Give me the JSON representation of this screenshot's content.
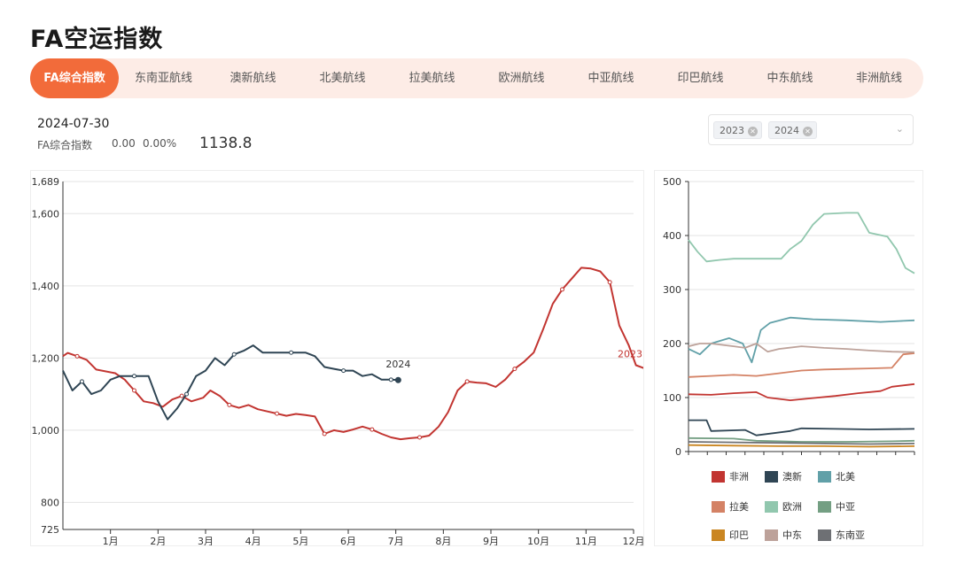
{
  "page": {
    "title": "FA空运指数"
  },
  "tabs": [
    {
      "label": "FA综合指数",
      "active": true
    },
    {
      "label": "东南亚航线"
    },
    {
      "label": "澳新航线"
    },
    {
      "label": "北美航线"
    },
    {
      "label": "拉美航线"
    },
    {
      "label": "欧洲航线"
    },
    {
      "label": "中亚航线"
    },
    {
      "label": "印巴航线"
    },
    {
      "label": "中东航线"
    },
    {
      "label": "非洲航线"
    }
  ],
  "summary": {
    "date": "2024-07-30",
    "name": "FA综合指数",
    "change": "0.00",
    "change_pct": "0.00%",
    "value": "1138.8"
  },
  "year_filter": {
    "tags": [
      "2023",
      "2024"
    ]
  },
  "colors": {
    "accent": "#f26b3a",
    "y2023": "#c23531",
    "y2024": "#2f4554"
  },
  "chart_data": [
    {
      "type": "line",
      "title": "",
      "x_ticks": [
        "1月",
        "2月",
        "3月",
        "4月",
        "5月",
        "6月",
        "7月",
        "8月",
        "9月",
        "10月",
        "11月",
        "12月"
      ],
      "y_ticks": [
        "725",
        "800",
        "1,000",
        "1,200",
        "1,400",
        "1,600",
        "1,689"
      ],
      "ylim": [
        725,
        1689
      ],
      "grid": true,
      "series": [
        {
          "name": "2023",
          "color": "#c23531",
          "points": [
            [
              0,
              1205
            ],
            [
              0.1,
              1214
            ],
            [
              0.3,
              1205
            ],
            [
              0.5,
              1195
            ],
            [
              0.7,
              1168
            ],
            [
              1.1,
              1158
            ],
            [
              1.3,
              1140
            ],
            [
              1.5,
              1110
            ],
            [
              1.7,
              1080
            ],
            [
              1.9,
              1075
            ],
            [
              2.1,
              1065
            ],
            [
              2.3,
              1085
            ],
            [
              2.5,
              1095
            ],
            [
              2.7,
              1080
            ],
            [
              2.95,
              1090
            ],
            [
              3.1,
              1110
            ],
            [
              3.3,
              1095
            ],
            [
              3.5,
              1070
            ],
            [
              3.7,
              1062
            ],
            [
              3.9,
              1070
            ],
            [
              4.1,
              1058
            ],
            [
              4.3,
              1052
            ],
            [
              4.5,
              1046
            ],
            [
              4.7,
              1040
            ],
            [
              4.9,
              1045
            ],
            [
              5.1,
              1042
            ],
            [
              5.3,
              1038
            ],
            [
              5.5,
              990
            ],
            [
              5.7,
              1000
            ],
            [
              5.9,
              995
            ],
            [
              6.1,
              1002
            ],
            [
              6.3,
              1010
            ],
            [
              6.5,
              1002
            ],
            [
              6.7,
              990
            ],
            [
              6.9,
              980
            ],
            [
              7.1,
              975
            ],
            [
              7.3,
              978
            ],
            [
              7.5,
              980
            ],
            [
              7.7,
              985
            ],
            [
              7.9,
              1010
            ],
            [
              8.1,
              1050
            ],
            [
              8.3,
              1110
            ],
            [
              8.5,
              1135
            ],
            [
              8.7,
              1132
            ],
            [
              8.9,
              1130
            ],
            [
              9.1,
              1120
            ],
            [
              9.3,
              1140
            ],
            [
              9.5,
              1170
            ],
            [
              9.7,
              1190
            ],
            [
              9.9,
              1215
            ],
            [
              10.1,
              1280
            ],
            [
              10.3,
              1350
            ],
            [
              10.5,
              1390
            ],
            [
              10.7,
              1420
            ],
            [
              10.9,
              1450
            ],
            [
              11.1,
              1448
            ],
            [
              11.3,
              1440
            ],
            [
              11.5,
              1410
            ],
            [
              11.7,
              1290
            ],
            [
              11.9,
              1235
            ],
            [
              12.05,
              1180
            ],
            [
              12.3,
              1168
            ]
          ]
        },
        {
          "name": "2024",
          "color": "#2f4554",
          "points": [
            [
              0,
              1165
            ],
            [
              0.2,
              1110
            ],
            [
              0.4,
              1135
            ],
            [
              0.6,
              1100
            ],
            [
              0.8,
              1110
            ],
            [
              1.0,
              1140
            ],
            [
              1.2,
              1150
            ],
            [
              1.5,
              1150
            ],
            [
              1.8,
              1150
            ],
            [
              2.0,
              1080
            ],
            [
              2.2,
              1030
            ],
            [
              2.4,
              1060
            ],
            [
              2.6,
              1100
            ],
            [
              2.8,
              1150
            ],
            [
              3.0,
              1165
            ],
            [
              3.2,
              1200
            ],
            [
              3.4,
              1180
            ],
            [
              3.6,
              1210
            ],
            [
              3.8,
              1220
            ],
            [
              4.0,
              1235
            ],
            [
              4.2,
              1215
            ],
            [
              4.5,
              1215
            ],
            [
              4.8,
              1215
            ],
            [
              5.1,
              1215
            ],
            [
              5.3,
              1205
            ],
            [
              5.5,
              1175
            ],
            [
              5.7,
              1170
            ],
            [
              5.9,
              1165
            ],
            [
              6.1,
              1165
            ],
            [
              6.3,
              1150
            ],
            [
              6.5,
              1155
            ],
            [
              6.7,
              1140
            ],
            [
              6.9,
              1140
            ],
            [
              7.05,
              1139
            ]
          ]
        }
      ]
    },
    {
      "type": "line",
      "title": "",
      "y_ticks": [
        "0",
        "100",
        "200",
        "300",
        "400",
        "500"
      ],
      "ylim": [
        0,
        500
      ],
      "grid": true,
      "series": [
        {
          "name": "非洲",
          "color": "#c23531",
          "points": [
            [
              0,
              106
            ],
            [
              0.1,
              105
            ],
            [
              0.2,
              108
            ],
            [
              0.3,
              110
            ],
            [
              0.35,
              100
            ],
            [
              0.45,
              95
            ],
            [
              0.55,
              99
            ],
            [
              0.65,
              103
            ],
            [
              0.75,
              108
            ],
            [
              0.85,
              112
            ],
            [
              0.9,
              120
            ],
            [
              1,
              125
            ]
          ]
        },
        {
          "name": "澳新",
          "color": "#2f4554",
          "points": [
            [
              0,
              58
            ],
            [
              0.08,
              58
            ],
            [
              0.1,
              38
            ],
            [
              0.25,
              40
            ],
            [
              0.3,
              30
            ],
            [
              0.45,
              38
            ],
            [
              0.5,
              43
            ],
            [
              0.65,
              42
            ],
            [
              0.8,
              41
            ],
            [
              1,
              42
            ]
          ]
        },
        {
          "name": "北美",
          "color": "#61a0a8",
          "points": [
            [
              0,
              190
            ],
            [
              0.05,
              180
            ],
            [
              0.1,
              200
            ],
            [
              0.18,
              210
            ],
            [
              0.24,
              200
            ],
            [
              0.28,
              165
            ],
            [
              0.32,
              225
            ],
            [
              0.36,
              238
            ],
            [
              0.45,
              248
            ],
            [
              0.55,
              245
            ],
            [
              0.7,
              243
            ],
            [
              0.85,
              240
            ],
            [
              0.95,
              242
            ],
            [
              1,
              243
            ]
          ]
        },
        {
          "name": "拉美",
          "color": "#d48265",
          "points": [
            [
              0,
              138
            ],
            [
              0.1,
              140
            ],
            [
              0.2,
              142
            ],
            [
              0.3,
              140
            ],
            [
              0.4,
              145
            ],
            [
              0.5,
              150
            ],
            [
              0.6,
              152
            ],
            [
              0.7,
              153
            ],
            [
              0.8,
              154
            ],
            [
              0.9,
              155
            ],
            [
              0.95,
              180
            ],
            [
              1,
              182
            ]
          ]
        },
        {
          "name": "欧洲",
          "color": "#91c7ae",
          "points": [
            [
              0,
              392
            ],
            [
              0.04,
              370
            ],
            [
              0.08,
              352
            ],
            [
              0.14,
              355
            ],
            [
              0.2,
              357
            ],
            [
              0.35,
              357
            ],
            [
              0.41,
              357
            ],
            [
              0.45,
              375
            ],
            [
              0.5,
              390
            ],
            [
              0.55,
              420
            ],
            [
              0.6,
              440
            ],
            [
              0.7,
              442
            ],
            [
              0.75,
              442
            ],
            [
              0.8,
              405
            ],
            [
              0.88,
              398
            ],
            [
              0.92,
              375
            ],
            [
              0.96,
              340
            ],
            [
              1,
              330
            ]
          ]
        },
        {
          "name": "中亚",
          "color": "#749f83",
          "points": [
            [
              0,
              25
            ],
            [
              0.2,
              24
            ],
            [
              0.3,
              20
            ],
            [
              0.5,
              18
            ],
            [
              0.7,
              18
            ],
            [
              0.9,
              19
            ],
            [
              1,
              20
            ]
          ]
        },
        {
          "name": "印巴",
          "color": "#ca8622",
          "points": [
            [
              0,
              12
            ],
            [
              0.2,
              11
            ],
            [
              0.4,
              10
            ],
            [
              0.6,
              10
            ],
            [
              0.8,
              9
            ],
            [
              1,
              10
            ]
          ]
        },
        {
          "name": "中东",
          "color": "#bda29a",
          "points": [
            [
              0,
              195
            ],
            [
              0.05,
              200
            ],
            [
              0.1,
              200
            ],
            [
              0.2,
              195
            ],
            [
              0.25,
              192
            ],
            [
              0.3,
              200
            ],
            [
              0.35,
              185
            ],
            [
              0.4,
              190
            ],
            [
              0.5,
              195
            ],
            [
              0.6,
              192
            ],
            [
              0.7,
              190
            ],
            [
              0.8,
              187
            ],
            [
              0.9,
              185
            ],
            [
              1,
              184
            ]
          ]
        },
        {
          "name": "东南亚",
          "color": "#6e7074",
          "points": [
            [
              0,
              18
            ],
            [
              0.2,
              17
            ],
            [
              0.4,
              16
            ],
            [
              0.6,
              15
            ],
            [
              0.8,
              14
            ],
            [
              1,
              15
            ]
          ]
        }
      ]
    }
  ]
}
